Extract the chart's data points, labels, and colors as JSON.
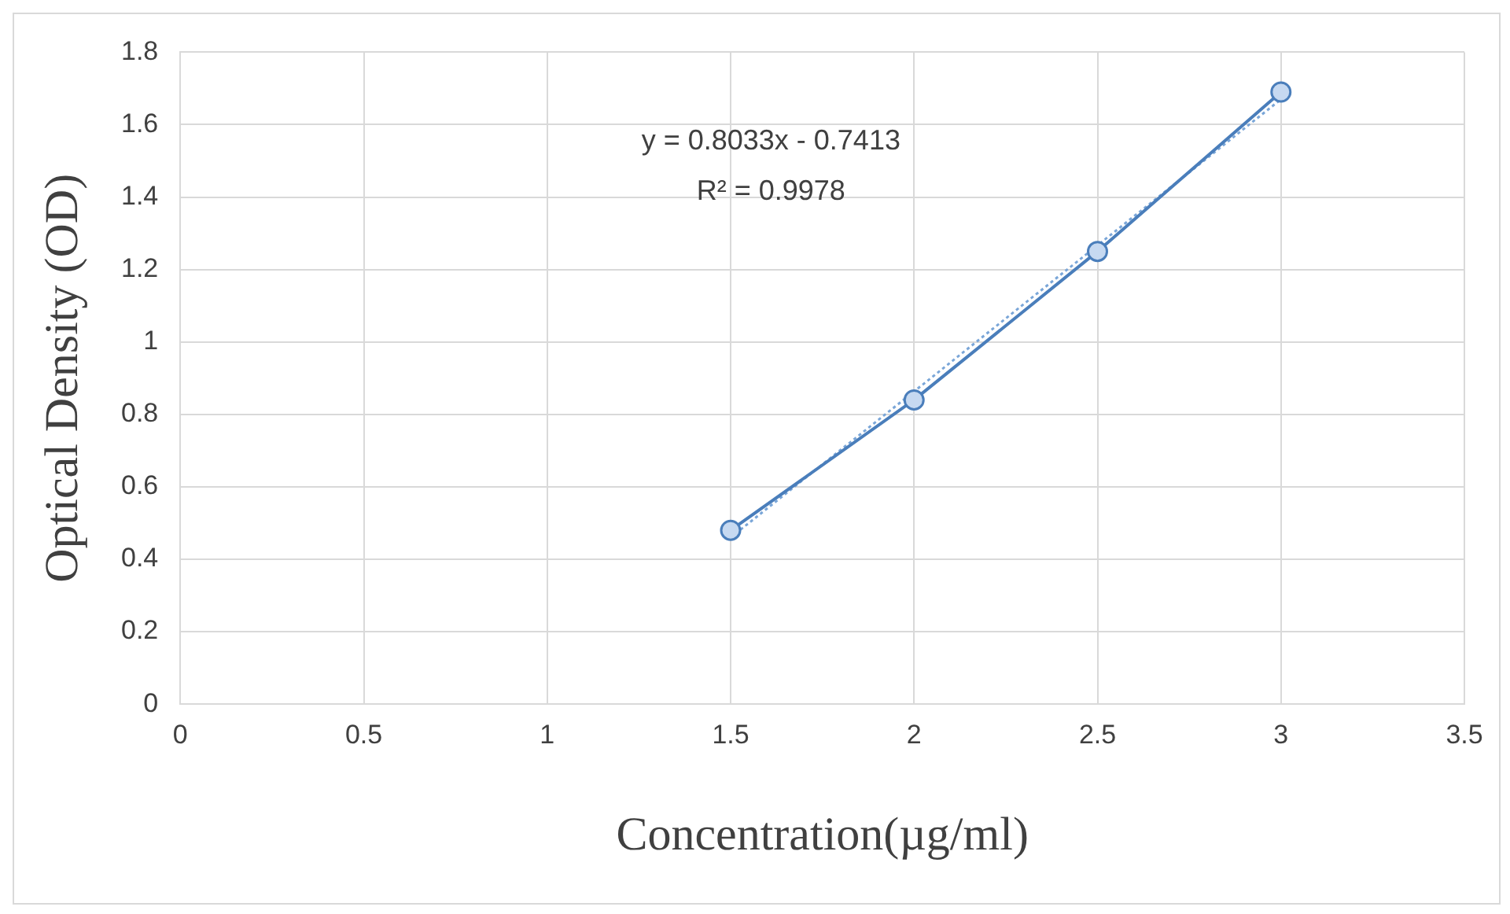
{
  "chart_data": {
    "type": "line",
    "xlabel": "Concentration(µg/ml)",
    "ylabel": "Optical Density (OD)",
    "series": [
      {
        "color": "#4a7ebb",
        "x": [
          1.5,
          2,
          2.5,
          3
        ],
        "values": [
          0.48,
          0.84,
          1.25,
          1.69
        ],
        "marker": "circle",
        "line_style": "solid"
      },
      {
        "color": "#7aa6d8",
        "x": [
          1.5,
          3
        ],
        "values": [
          0.46,
          1.67
        ],
        "marker": "none",
        "line_style": "dotted"
      }
    ],
    "xlim": [
      0,
      3.5
    ],
    "xticks": [
      0,
      0.5,
      1,
      1.5,
      2,
      2.5,
      3,
      3.5
    ],
    "ylim": [
      0,
      1.8
    ],
    "yticks": [
      0,
      0.2,
      0.4,
      0.6,
      0.8,
      1,
      1.2,
      1.4,
      1.6,
      1.8
    ],
    "grid": true,
    "legend": false,
    "annotations": [
      "y = 0.8033x - 0.7413",
      "R² = 0.9978"
    ]
  }
}
